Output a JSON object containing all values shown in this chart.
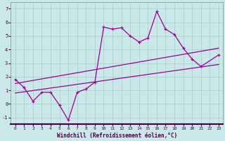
{
  "bg_color": "#cbe8e8",
  "grid_color": "#aacccc",
  "line_color": "#990099",
  "xlabel": "Windchill (Refroidissement éolien,°C)",
  "xlim": [
    -0.5,
    23.5
  ],
  "ylim": [
    -1.5,
    7.5
  ],
  "yticks": [
    -1,
    0,
    1,
    2,
    3,
    4,
    5,
    6,
    7
  ],
  "xticks": [
    0,
    1,
    2,
    3,
    4,
    5,
    6,
    7,
    8,
    9,
    10,
    11,
    12,
    13,
    14,
    15,
    16,
    17,
    18,
    19,
    20,
    21,
    22,
    23
  ],
  "series1_x": [
    0,
    1,
    2,
    3,
    4,
    5,
    6,
    7,
    8,
    9,
    10,
    11,
    12,
    13,
    14,
    15,
    16,
    17,
    18,
    19,
    20,
    21,
    23
  ],
  "series1_y": [
    1.8,
    1.2,
    0.2,
    0.85,
    0.85,
    -0.1,
    -1.2,
    0.85,
    1.1,
    1.6,
    5.65,
    5.5,
    5.6,
    5.0,
    4.55,
    4.85,
    6.8,
    5.5,
    5.1,
    4.1,
    3.3,
    2.75,
    3.6
  ],
  "series2_x": [
    0,
    23
  ],
  "series2_y": [
    0.8,
    2.9
  ],
  "series3_x": [
    0,
    23
  ],
  "series3_y": [
    1.5,
    4.1
  ]
}
